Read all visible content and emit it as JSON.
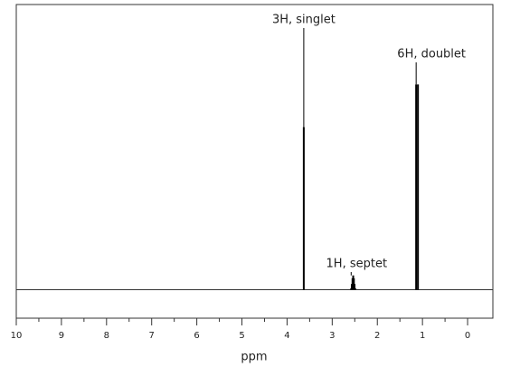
{
  "chart_data": {
    "type": "spectrum",
    "x_label": "ppm",
    "xlim": [
      10,
      -0.56
    ],
    "xticks": [
      10,
      9,
      8,
      7,
      6,
      5,
      4,
      3,
      2,
      1,
      0
    ],
    "xminorticks": [
      9.5,
      8.5,
      7.5,
      6.5,
      5.5,
      4.5,
      3.5,
      2.5,
      1.5,
      0.5
    ],
    "ylim": [
      -10,
      100
    ],
    "color": "#000000",
    "peaks": [
      {
        "label": "3H, singlet",
        "x": [
          3.63
        ],
        "values": [
          57
        ]
      },
      {
        "label": "6H, doublet",
        "x": [
          1.14,
          1.1
        ],
        "values": [
          72,
          72
        ]
      },
      {
        "label": "1H, septet",
        "x": [
          2.58,
          2.565,
          2.55,
          2.535,
          2.52,
          2.505,
          2.49
        ],
        "values": [
          0.5,
          2,
          4,
          5,
          4,
          2,
          0.5
        ]
      }
    ]
  }
}
